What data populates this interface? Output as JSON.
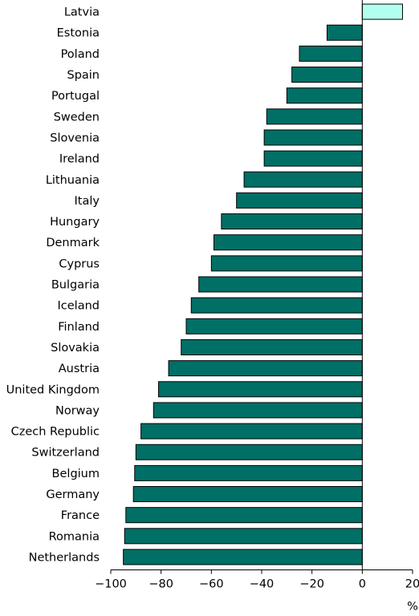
{
  "chart_data": {
    "type": "bar",
    "orientation": "horizontal",
    "categories": [
      "Latvia",
      "Estonia",
      "Poland",
      "Spain",
      "Portugal",
      "Sweden",
      "Slovenia",
      "Ireland",
      "Lithuania",
      "Italy",
      "Hungary",
      "Denmark",
      "Cyprus",
      "Bulgaria",
      "Iceland",
      "Finland",
      "Slovakia",
      "Austria",
      "United Kingdom",
      "Norway",
      "Czech Republic",
      "Switzerland",
      "Belgium",
      "Germany",
      "France",
      "Romania",
      "Netherlands"
    ],
    "values": [
      16,
      -14,
      -25,
      -28,
      -30,
      -38,
      -39,
      -39,
      -47,
      -50,
      -56,
      -59,
      -60,
      -65,
      -68,
      -70,
      -72,
      -77,
      -81,
      -83,
      -88,
      -90,
      -90.5,
      -91,
      -94,
      -94.5,
      -95
    ],
    "xlim": [
      -100,
      20
    ],
    "xticks": [
      -100,
      -80,
      -60,
      -40,
      -20,
      0,
      20
    ],
    "xtick_labels": [
      "−100",
      "−80",
      "−60",
      "−40",
      "−20",
      "0",
      "20"
    ],
    "xlabel": "%",
    "ylabel": "",
    "title": "",
    "colors": {
      "negative": "#006f66",
      "positive": "#b3ffef",
      "stroke": "#000000"
    },
    "grid": false
  }
}
